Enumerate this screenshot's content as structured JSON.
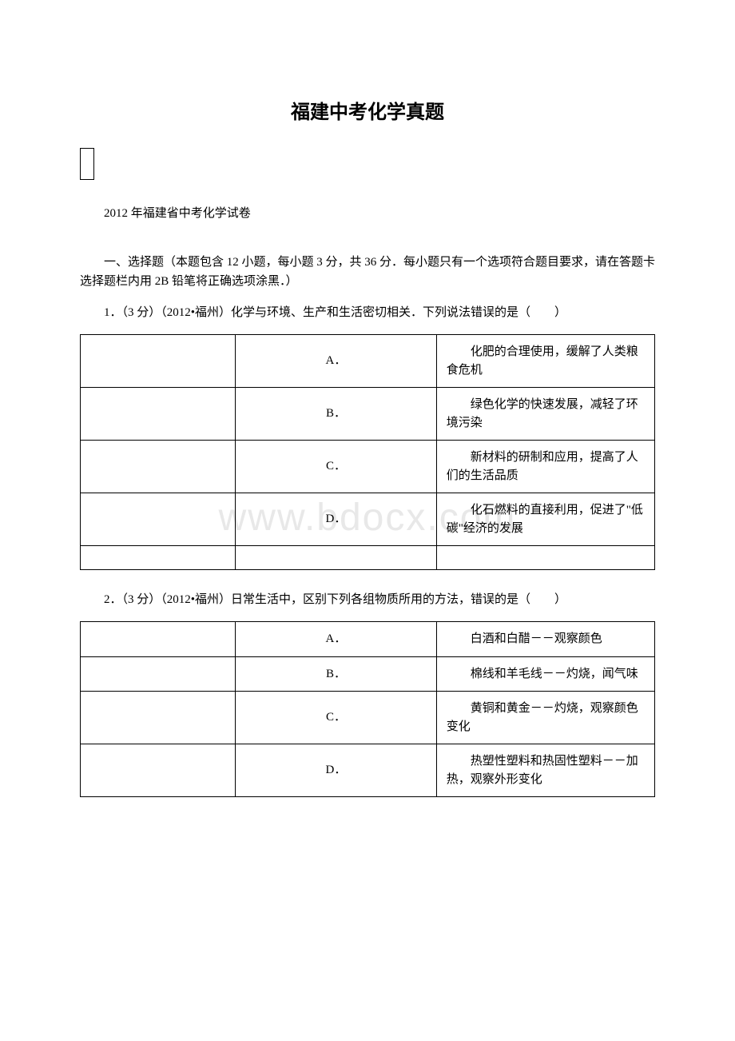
{
  "watermark": "www.bdocx.com",
  "main_title": "福建中考化学真题",
  "subtitle": "2012 年福建省中考化学试卷",
  "section_header": "一、选择题（本题包含 12 小题，每小题 3 分，共 36 分．每小题只有一个选项符合题目要求，请在答题卡选择题栏内用 2B 铅笔将正确选项涂黑．）",
  "questions": [
    {
      "text": "1．（3 分）（2012•福州）化学与环境、生产和生活密切相关．下列说法错误的是（　　）",
      "options": [
        {
          "letter": "A．",
          "desc": "化肥的合理使用，缓解了人类粮食危机"
        },
        {
          "letter": "B．",
          "desc": "绿色化学的快速发展，减轻了环境污染"
        },
        {
          "letter": "C．",
          "desc": "新材料的研制和应用，提高了人们的生活品质"
        },
        {
          "letter": "D．",
          "desc": "化石燃料的直接利用，促进了\"低碳\"经济的发展"
        }
      ],
      "has_blank_row": true
    },
    {
      "text": "2．（3 分）（2012•福州）日常生活中，区别下列各组物质所用的方法，错误的是（　　）",
      "options": [
        {
          "letter": "A．",
          "desc": "白酒和白醋－－观察颜色"
        },
        {
          "letter": "B．",
          "desc": "棉线和羊毛线－－灼烧，闻气味"
        },
        {
          "letter": "C．",
          "desc": "黄铜和黄金－－灼烧，观察颜色变化"
        },
        {
          "letter": "D．",
          "desc": "热塑性塑料和热固性塑料－－加热，观察外形变化"
        }
      ],
      "has_blank_row": false
    }
  ]
}
